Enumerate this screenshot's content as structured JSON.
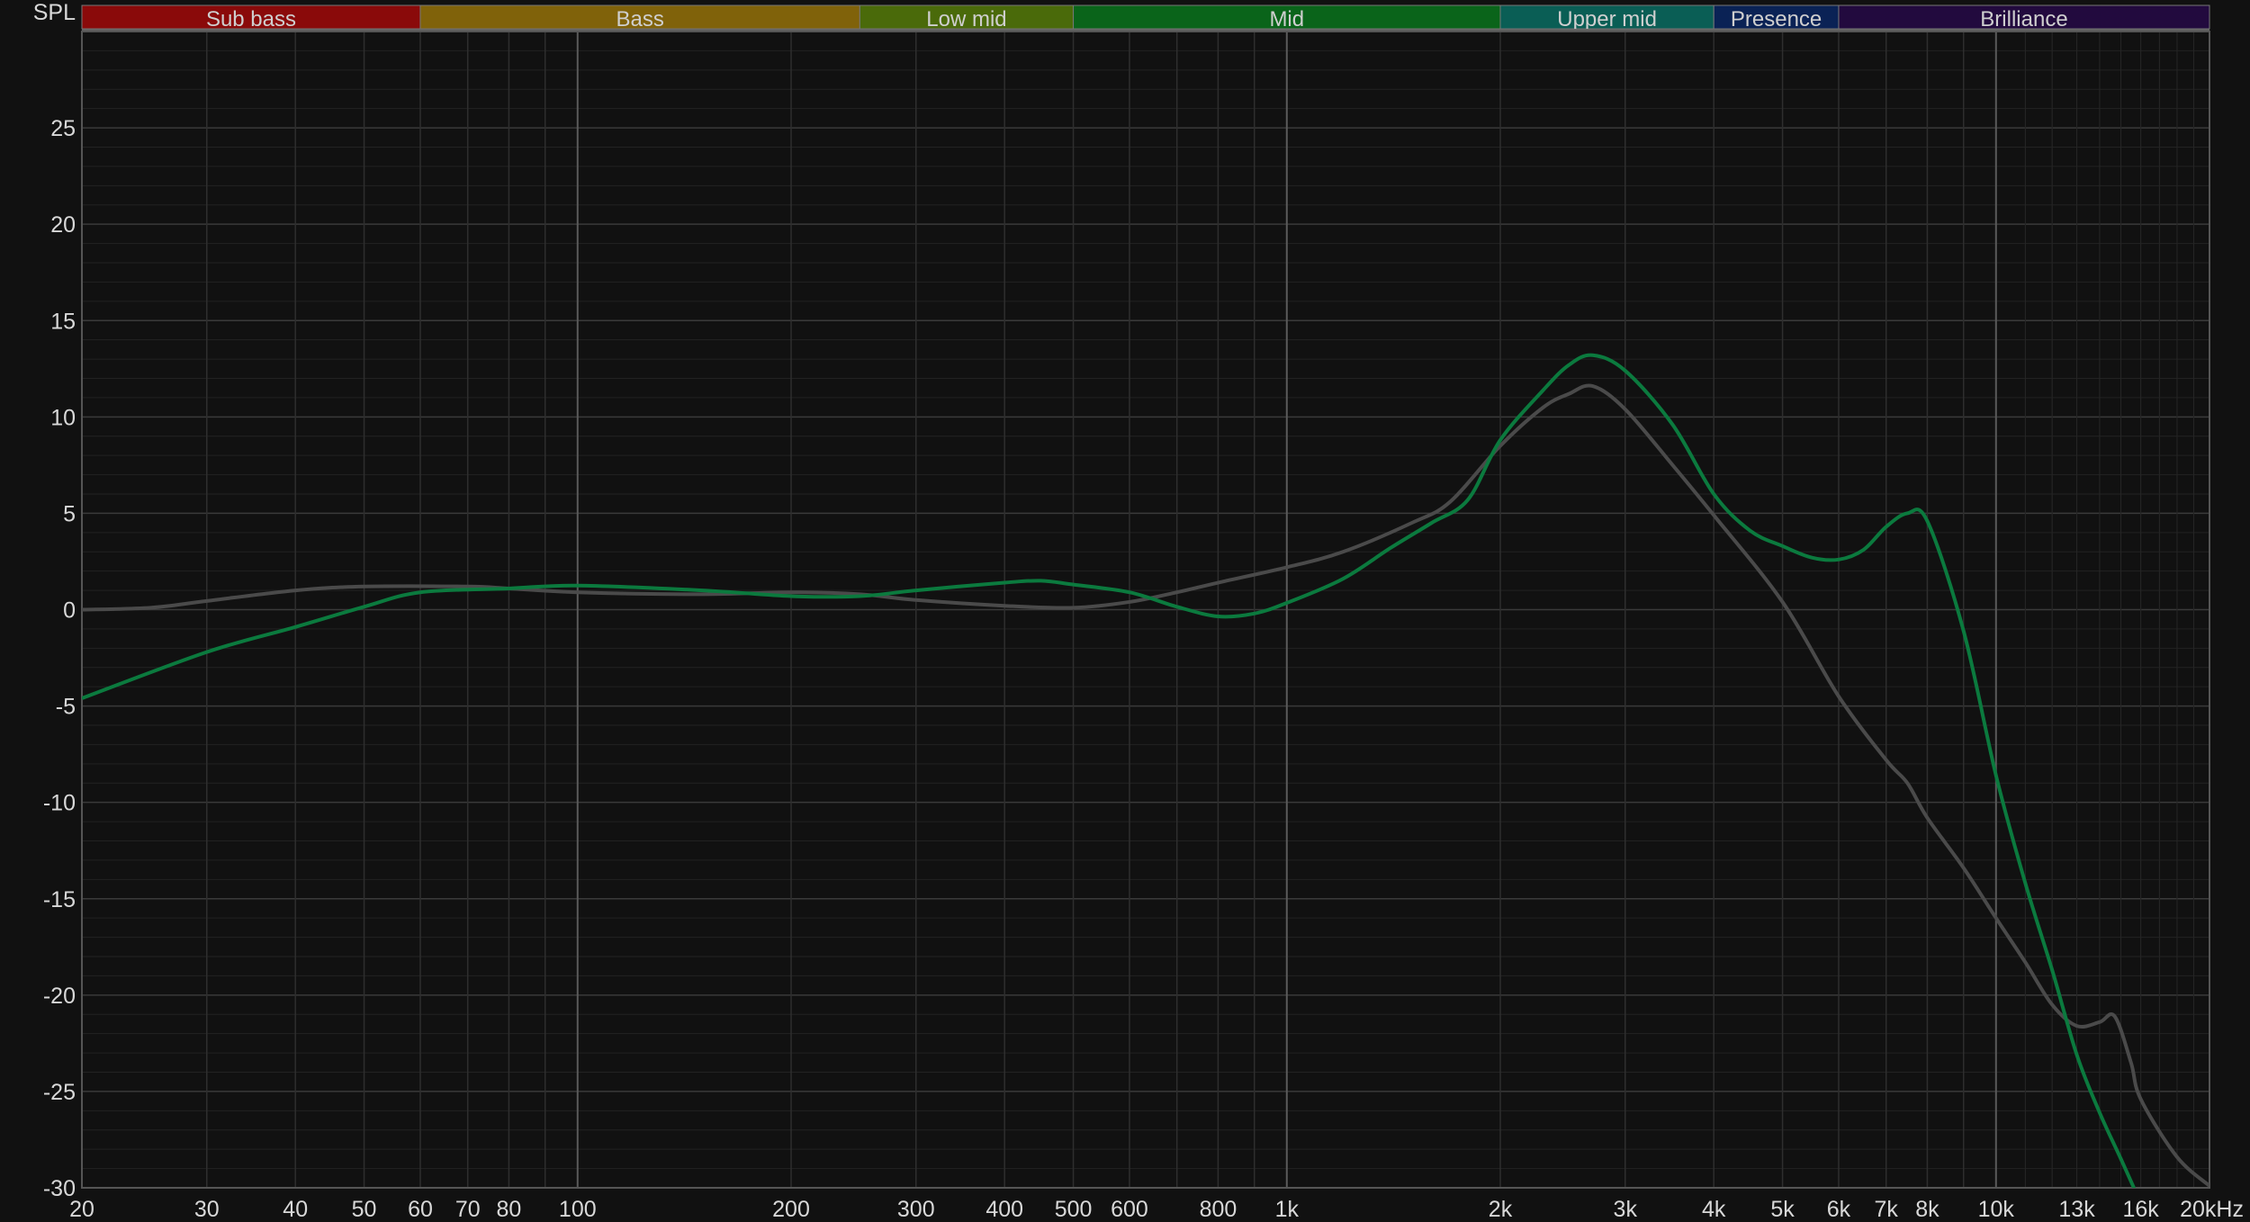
{
  "chart_data": {
    "type": "line",
    "ylabel": "SPL",
    "xunit": "kHz",
    "xscale": "log",
    "xlim": [
      20,
      20000
    ],
    "ylim": [
      -30,
      30
    ],
    "grid": true,
    "yticks": [
      25,
      20,
      15,
      10,
      5,
      0,
      -5,
      -10,
      -15,
      -20,
      -25,
      -30
    ],
    "xticks": [
      {
        "value": 20,
        "label": "20"
      },
      {
        "value": 30,
        "label": "30"
      },
      {
        "value": 40,
        "label": "40"
      },
      {
        "value": 50,
        "label": "50"
      },
      {
        "value": 60,
        "label": "60"
      },
      {
        "value": 70,
        "label": "70"
      },
      {
        "value": 80,
        "label": "80"
      },
      {
        "value": 100,
        "label": "100"
      },
      {
        "value": 200,
        "label": "200"
      },
      {
        "value": 300,
        "label": "300"
      },
      {
        "value": 400,
        "label": "400"
      },
      {
        "value": 500,
        "label": "500"
      },
      {
        "value": 600,
        "label": "600"
      },
      {
        "value": 800,
        "label": "800"
      },
      {
        "value": 1000,
        "label": "1k"
      },
      {
        "value": 2000,
        "label": "2k"
      },
      {
        "value": 3000,
        "label": "3k"
      },
      {
        "value": 4000,
        "label": "4k"
      },
      {
        "value": 5000,
        "label": "5k"
      },
      {
        "value": 6000,
        "label": "6k"
      },
      {
        "value": 7000,
        "label": "7k"
      },
      {
        "value": 8000,
        "label": "8k"
      },
      {
        "value": 10000,
        "label": "10k"
      },
      {
        "value": 13000,
        "label": "13k",
        "dim": true
      },
      {
        "value": 16000,
        "label": "16k",
        "dim": true
      },
      {
        "value": 20000,
        "label": "20kHz"
      }
    ],
    "bands": [
      {
        "label": "Sub bass",
        "from": 20,
        "to": 60,
        "color": "#8a0a0a"
      },
      {
        "label": "Bass",
        "from": 60,
        "to": 250,
        "color": "#80620a"
      },
      {
        "label": "Low mid",
        "from": 250,
        "to": 500,
        "color": "#4a6a0a"
      },
      {
        "label": "Mid",
        "from": 500,
        "to": 2000,
        "color": "#0a641a"
      },
      {
        "label": "Upper mid",
        "from": 2000,
        "to": 4000,
        "color": "#0a5e55"
      },
      {
        "label": "Presence",
        "from": 4000,
        "to": 6000,
        "color": "#0a2255"
      },
      {
        "label": "Brilliance",
        "from": 6000,
        "to": 20000,
        "color": "#220a3e"
      }
    ],
    "series": [
      {
        "color": "#0b7a3e",
        "x": [
          20,
          30,
          40,
          50,
          60,
          80,
          100,
          150,
          200,
          250,
          300,
          400,
          450,
          500,
          600,
          700,
          800,
          900,
          1000,
          1200,
          1400,
          1600,
          1800,
          2000,
          2300,
          2500,
          2700,
          3000,
          3500,
          4000,
          4500,
          5000,
          5500,
          6000,
          6500,
          7000,
          7500,
          8000,
          9000,
          10000,
          11000,
          12000,
          13000,
          14000,
          15000,
          16000
        ],
        "y": [
          -4.6,
          -2.2,
          -0.9,
          0.15,
          0.9,
          1.1,
          1.25,
          1.0,
          0.7,
          0.7,
          1.0,
          1.4,
          1.5,
          1.3,
          0.9,
          0.15,
          -0.35,
          -0.2,
          0.35,
          1.6,
          3.2,
          4.5,
          5.7,
          8.8,
          11.4,
          12.7,
          13.2,
          12.4,
          9.6,
          6.0,
          4.1,
          3.3,
          2.7,
          2.6,
          3.1,
          4.3,
          5.0,
          4.6,
          -1.1,
          -8.6,
          -14.2,
          -18.7,
          -23.1,
          -26.1,
          -28.5,
          -30.8
        ]
      },
      {
        "color": "#4a4a4a",
        "x": [
          20,
          25,
          30,
          40,
          50,
          70,
          80,
          100,
          150,
          200,
          250,
          300,
          400,
          500,
          600,
          700,
          800,
          1000,
          1200,
          1500,
          1700,
          2000,
          2300,
          2500,
          2700,
          3000,
          3500,
          4000,
          5000,
          6000,
          7000,
          7500,
          8000,
          9000,
          10000,
          11000,
          12000,
          13000,
          14000,
          14700,
          15500,
          16000,
          18000,
          20000
        ],
        "y": [
          0,
          0.1,
          0.45,
          1.0,
          1.2,
          1.2,
          1.1,
          0.9,
          0.8,
          0.9,
          0.8,
          0.5,
          0.2,
          0.1,
          0.4,
          0.9,
          1.4,
          2.2,
          3.0,
          4.5,
          5.6,
          8.5,
          10.5,
          11.2,
          11.6,
          10.4,
          7.5,
          4.9,
          0.4,
          -4.5,
          -7.8,
          -9.0,
          -10.8,
          -13.4,
          -16.0,
          -18.3,
          -20.5,
          -21.6,
          -21.4,
          -21.1,
          -23.5,
          -25.4,
          -28.4,
          -29.9
        ]
      }
    ]
  }
}
